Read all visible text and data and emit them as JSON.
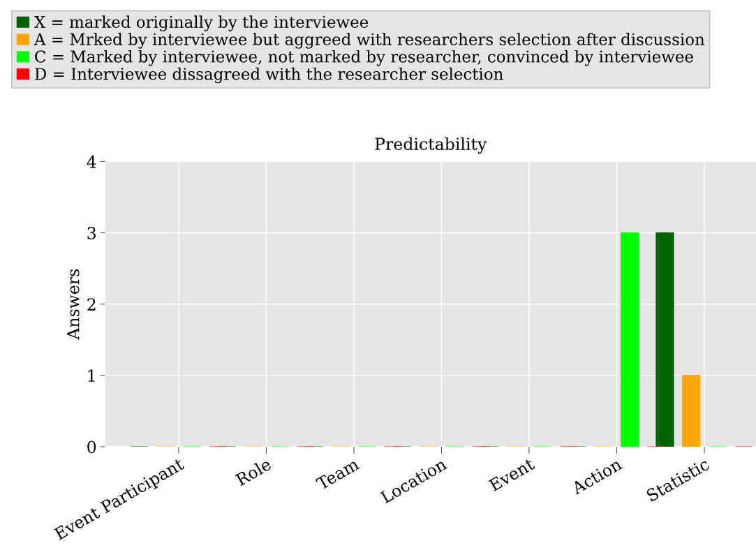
{
  "chart_data": {
    "type": "bar",
    "title": "Predictability",
    "ylabel": "Answers",
    "categories": [
      "Event Participant",
      "Role",
      "Team",
      "Location",
      "Event",
      "Action",
      "Statistic"
    ],
    "series": [
      {
        "name": "X = marked originally by the interviewee",
        "color": "#006400",
        "values": [
          0,
          0,
          0,
          0,
          0,
          0,
          3
        ]
      },
      {
        "name": "A = Mrked by interviewee but aggreed with researchers selection after discussion",
        "color": "#ffa500",
        "values": [
          0,
          0,
          0,
          0,
          0,
          0,
          1
        ]
      },
      {
        "name": "C = Marked by interviewee, not marked by researcher, convinced by interviewee",
        "color": "#00ff00",
        "values": [
          0,
          0,
          0,
          0,
          0,
          3,
          0
        ]
      },
      {
        "name": "D = Interviewee dissagreed with the researcher selection",
        "color": "#ff0000",
        "values": [
          0,
          0,
          0,
          0,
          0,
          0,
          0
        ]
      }
    ],
    "ylim": [
      0,
      4
    ],
    "yticks": [
      0,
      1,
      2,
      3,
      4
    ],
    "grid": true,
    "legend": "top"
  }
}
